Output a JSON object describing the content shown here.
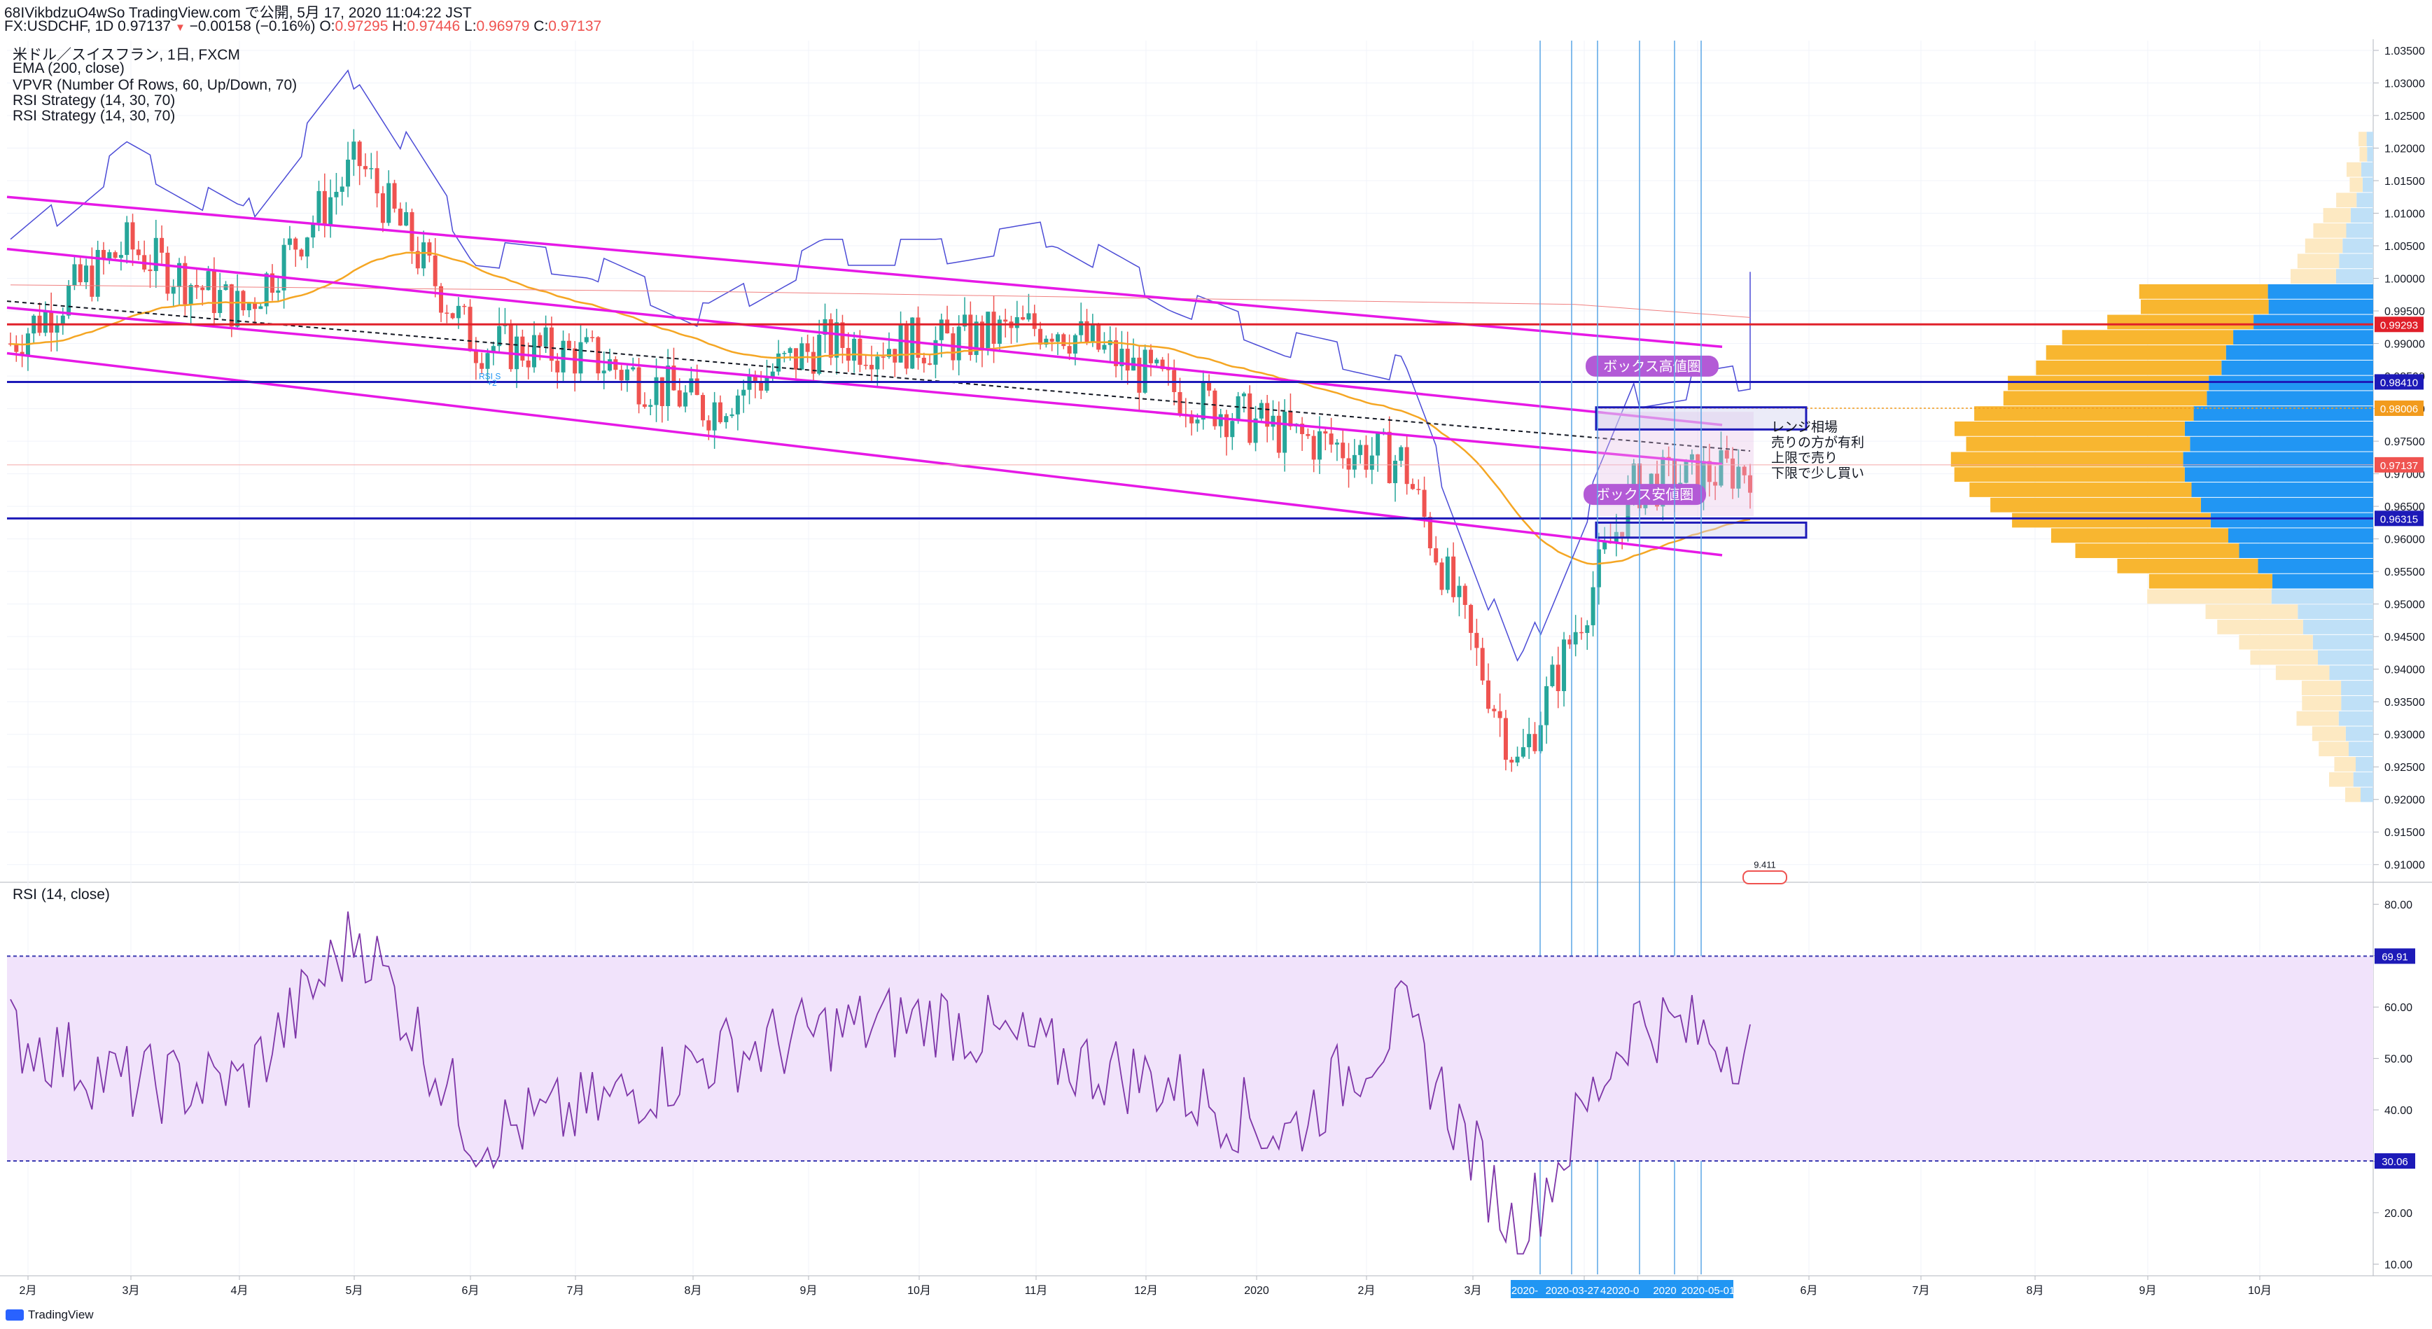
{
  "header": {
    "line1": "68IVikbdzuO4wSo TradingView.com で公開, 5月 17, 2020 11:04:22 JST",
    "line2_prefix": "FX:USDCHF, 1D 0.97137",
    "line2_change": "−0.00158 (−0.16%)",
    "o_label": "O:",
    "o_value": "0.97295",
    "h_label": "H:",
    "h_value": "0.97446",
    "l_label": "L:",
    "l_value": "0.96979",
    "c_label": "C:",
    "c_value": "0.97137"
  },
  "legend": {
    "symbol": "米ドル／スイスフラン, 1日, FXCM",
    "ema": "EMA (200, close)",
    "vpvr": "VPVR (Number Of Rows, 60, Up/Down, 70)",
    "rsi_strategy_1": "RSI Strategy (14, 30, 70)",
    "rsi_strategy_2": "RSI Strategy (14, 30, 70)"
  },
  "rsi_panel": {
    "title": "RSI (14, close)"
  },
  "annotations": {
    "box_high": "ボックス高値圏",
    "box_low": "ボックス安値圏",
    "note_lines": [
      "レンジ相場",
      "売りの方が有利",
      "上限で売り",
      "下限で少し買い"
    ],
    "rsi_marker": "RSI S\n+2",
    "bubble_value": "9.411"
  },
  "price_axis": {
    "ticks": [
      "1.03500",
      "1.03000",
      "1.02500",
      "1.02000",
      "1.01500",
      "1.01000",
      "1.00500",
      "1.00000",
      "0.99500",
      "0.99000",
      "0.98500",
      "0.98000",
      "0.97500",
      "0.97000",
      "0.96500",
      "0.96000",
      "0.95500",
      "0.95000",
      "0.94500",
      "0.94000",
      "0.93500",
      "0.93000",
      "0.92500",
      "0.92000",
      "0.91500",
      "0.91000"
    ],
    "labels": [
      {
        "text": "0.99293",
        "value": 0.99293,
        "color": "#e0202a"
      },
      {
        "text": "0.98410",
        "value": 0.9841,
        "color": "#1d1ab8"
      },
      {
        "text": "0.98006",
        "value": 0.98006,
        "color": "#f29b1d"
      },
      {
        "text": "0.97137",
        "value": 0.97137,
        "color": "#ef5350"
      },
      {
        "text": "0.96315",
        "value": 0.96315,
        "color": "#1d1ab8"
      }
    ]
  },
  "rsi_axis": {
    "ticks": [
      "80.00",
      "70.00",
      "60.00",
      "50.00",
      "40.00",
      "30.00",
      "20.00",
      "10.00"
    ],
    "labels": [
      {
        "text": "69.91",
        "value": 69.91
      },
      {
        "text": "30.06",
        "value": 30.06
      }
    ]
  },
  "time_axis": {
    "ticks": [
      "2月",
      "3月",
      "4月",
      "5月",
      "6月",
      "7月",
      "8月",
      "9月",
      "10月",
      "11月",
      "12月",
      "2020",
      "2月",
      "3月",
      "4月",
      "5月",
      "6月",
      "7月",
      "8月",
      "9月",
      "10月"
    ],
    "highlight_labels": [
      "2020-",
      "2020-03-27",
      "4",
      "2020-0",
      "2020",
      "2020-05-01"
    ]
  },
  "footer": {
    "brand": "TradingView"
  },
  "colors": {
    "up": "#26a69a",
    "down": "#ef5350",
    "channel": "#e619e6",
    "level": "#1d1ab8",
    "ema": "#f5a623",
    "rsi": "#7e36a8",
    "rsi_band": "#f1e3fb",
    "vpvr_up": "#2196f3",
    "vpvr_down": "#f8b630"
  },
  "chart_data": {
    "type": "candlestick",
    "symbol": "FX:USDCHF",
    "timeframe": "1D",
    "ylim": [
      0.9075,
      1.0365
    ],
    "last": {
      "open": 0.97295,
      "high": 0.97446,
      "low": 0.96979,
      "close": 0.97137,
      "change": -0.00158,
      "change_pct": -0.16
    },
    "horizontal_levels": [
      0.99293,
      0.9841,
      0.96315
    ],
    "price_path": [
      [
        "2月",
        0.99
      ],
      [
        "3月",
        1.005
      ],
      [
        "4月",
        0.995
      ],
      [
        "5月",
        1.018
      ],
      [
        "6月",
        0.99
      ],
      [
        "7月",
        0.988
      ],
      [
        "8月",
        0.98
      ],
      [
        "9月",
        0.99
      ],
      [
        "10月",
        0.99
      ],
      [
        "11月",
        0.993
      ],
      [
        "12月",
        0.983
      ],
      [
        "2020",
        0.976
      ],
      [
        "2月",
        0.972
      ],
      [
        "3月",
        0.925
      ],
      [
        "4月",
        0.968
      ],
      [
        "5月",
        0.971
      ]
    ],
    "rsi": {
      "overbought": 69.91,
      "oversold": 30.06,
      "ylim": [
        8,
        84
      ],
      "path": [
        [
          "2月",
          55
        ],
        [
          "3月",
          45
        ],
        [
          "4月",
          45
        ],
        [
          "5月",
          75
        ],
        [
          "6月",
          35
        ],
        [
          "7月",
          40
        ],
        [
          "8月",
          50
        ],
        [
          "9月",
          55
        ],
        [
          "10月",
          58
        ],
        [
          "11月",
          50
        ],
        [
          "12月",
          45
        ],
        [
          "2020",
          35
        ],
        [
          "2月",
          58
        ],
        [
          "3月",
          15
        ],
        [
          "4月",
          58
        ],
        [
          "5月",
          52
        ]
      ]
    }
  }
}
